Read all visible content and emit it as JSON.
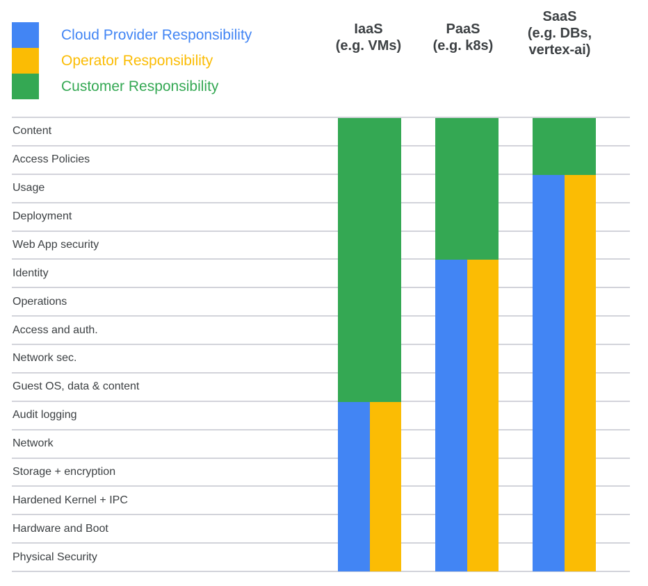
{
  "legend": {
    "items": [
      {
        "id": "cloud-provider",
        "label": "Cloud Provider Responsibility",
        "color": "#4285F4"
      },
      {
        "id": "operator",
        "label": "Operator Responsibility",
        "color": "#FBBC04"
      },
      {
        "id": "customer",
        "label": "Customer Responsibility",
        "color": "#34A853"
      }
    ]
  },
  "rows": [
    "Content",
    "Access Policies",
    "Usage",
    "Deployment",
    "Web App security",
    "Identity",
    "Operations",
    "Access and auth.",
    "Network sec.",
    "Guest OS, data & content",
    "Audit logging",
    "Network",
    "Storage + encryption",
    "Hardened Kernel + IPC",
    "Hardware and Boot",
    "Physical Security"
  ],
  "columns": [
    {
      "id": "iaas",
      "header_lines": [
        "IaaS",
        "(e.g. VMs)"
      ],
      "customer_rows": 10
    },
    {
      "id": "paas",
      "header_lines": [
        "PaaS",
        "(e.g. k8s)"
      ],
      "customer_rows": 5
    },
    {
      "id": "saas",
      "header_lines": [
        "SaaS",
        "(e.g. DBs,",
        "vertex-ai)"
      ],
      "customer_rows": 2
    }
  ],
  "chart_data": {
    "type": "heatmap",
    "title": "",
    "legend": [
      "Cloud Provider Responsibility",
      "Operator Responsibility",
      "Customer Responsibility"
    ],
    "legend_colors": [
      "#4285F4",
      "#FBBC04",
      "#34A853"
    ],
    "y_categories": [
      "Content",
      "Access Policies",
      "Usage",
      "Deployment",
      "Web App security",
      "Identity",
      "Operations",
      "Access and auth.",
      "Network sec.",
      "Guest OS, data & content",
      "Audit logging",
      "Network",
      "Storage + encryption",
      "Hardened Kernel + IPC",
      "Hardware and Boot",
      "Physical Security"
    ],
    "x_categories": [
      "IaaS (e.g. VMs)",
      "PaaS (e.g. k8s)",
      "SaaS (e.g. DBs, vertex-ai)"
    ],
    "assignments": {
      "IaaS (e.g. VMs)": {
        "customer_responsibility": [
          "Content",
          "Access Policies",
          "Usage",
          "Deployment",
          "Web App security",
          "Identity",
          "Operations",
          "Access and auth.",
          "Network sec.",
          "Guest OS, data & content"
        ],
        "cloud_provider_and_operator_responsibility": [
          "Audit logging",
          "Network",
          "Storage + encryption",
          "Hardened Kernel + IPC",
          "Hardware and Boot",
          "Physical Security"
        ]
      },
      "PaaS (e.g. k8s)": {
        "customer_responsibility": [
          "Content",
          "Access Policies",
          "Usage",
          "Deployment",
          "Web App security"
        ],
        "cloud_provider_and_operator_responsibility": [
          "Identity",
          "Operations",
          "Access and auth.",
          "Network sec.",
          "Guest OS, data & content",
          "Audit logging",
          "Network",
          "Storage + encryption",
          "Hardened Kernel + IPC",
          "Hardware and Boot",
          "Physical Security"
        ]
      },
      "SaaS (e.g. DBs, vertex-ai)": {
        "customer_responsibility": [
          "Content",
          "Access Policies"
        ],
        "cloud_provider_and_operator_responsibility": [
          "Usage",
          "Deployment",
          "Web App security",
          "Identity",
          "Operations",
          "Access and auth.",
          "Network sec.",
          "Guest OS, data & content",
          "Audit logging",
          "Network",
          "Storage + encryption",
          "Hardened Kernel + IPC",
          "Hardware and Boot",
          "Physical Security"
        ]
      }
    }
  }
}
